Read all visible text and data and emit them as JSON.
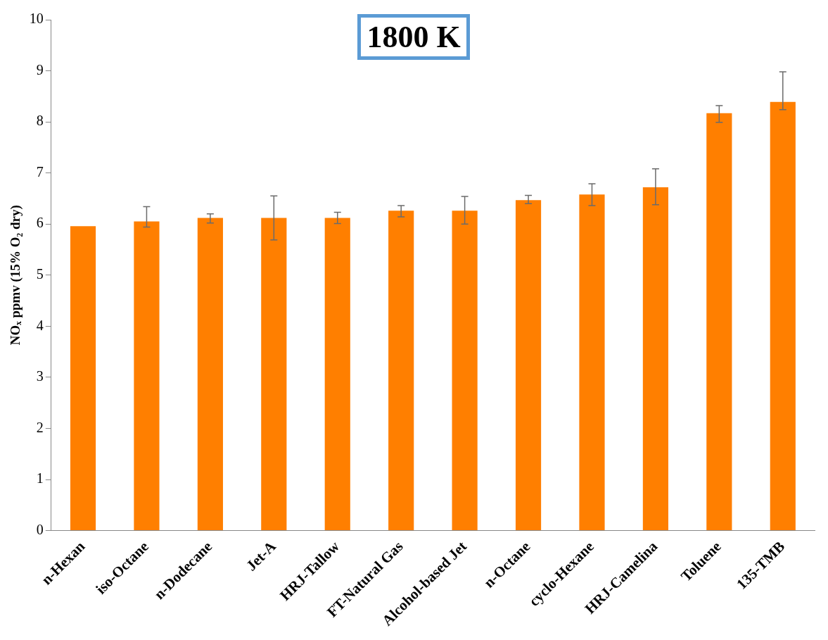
{
  "chart_data": {
    "type": "bar",
    "title": "1800 K",
    "ylabel": "NOₓ ppmv (15% O₂ dry)",
    "categories": [
      "n-Hexan",
      "iso-Octane",
      "n-Dodecane",
      "Jet-A",
      "HRJ-Tallow",
      "FT-Natural Gas",
      "Alcohol-based Jet",
      "n-Octane",
      "cyclo-Hexane",
      "HRJ-Camelina",
      "Toluene",
      "135-TMB"
    ],
    "values": [
      5.96,
      6.05,
      6.12,
      6.12,
      6.12,
      6.26,
      6.26,
      6.47,
      6.58,
      6.72,
      8.17,
      8.39
    ],
    "errors": [
      null,
      [
        5.94,
        6.34
      ],
      [
        6.02,
        6.2
      ],
      [
        5.69,
        6.55
      ],
      [
        6.01,
        6.23
      ],
      [
        6.14,
        6.36
      ],
      [
        6.0,
        6.54
      ],
      [
        6.4,
        6.56
      ],
      [
        6.36,
        6.79
      ],
      [
        6.38,
        7.08
      ],
      [
        7.99,
        8.32
      ],
      [
        8.24,
        8.98
      ]
    ],
    "color": "#ff7f00",
    "ylim": [
      0,
      10
    ],
    "yticks": [
      0,
      1,
      2,
      3,
      4,
      5,
      6,
      7,
      8,
      9,
      10
    ],
    "grid": false,
    "legend": false
  }
}
